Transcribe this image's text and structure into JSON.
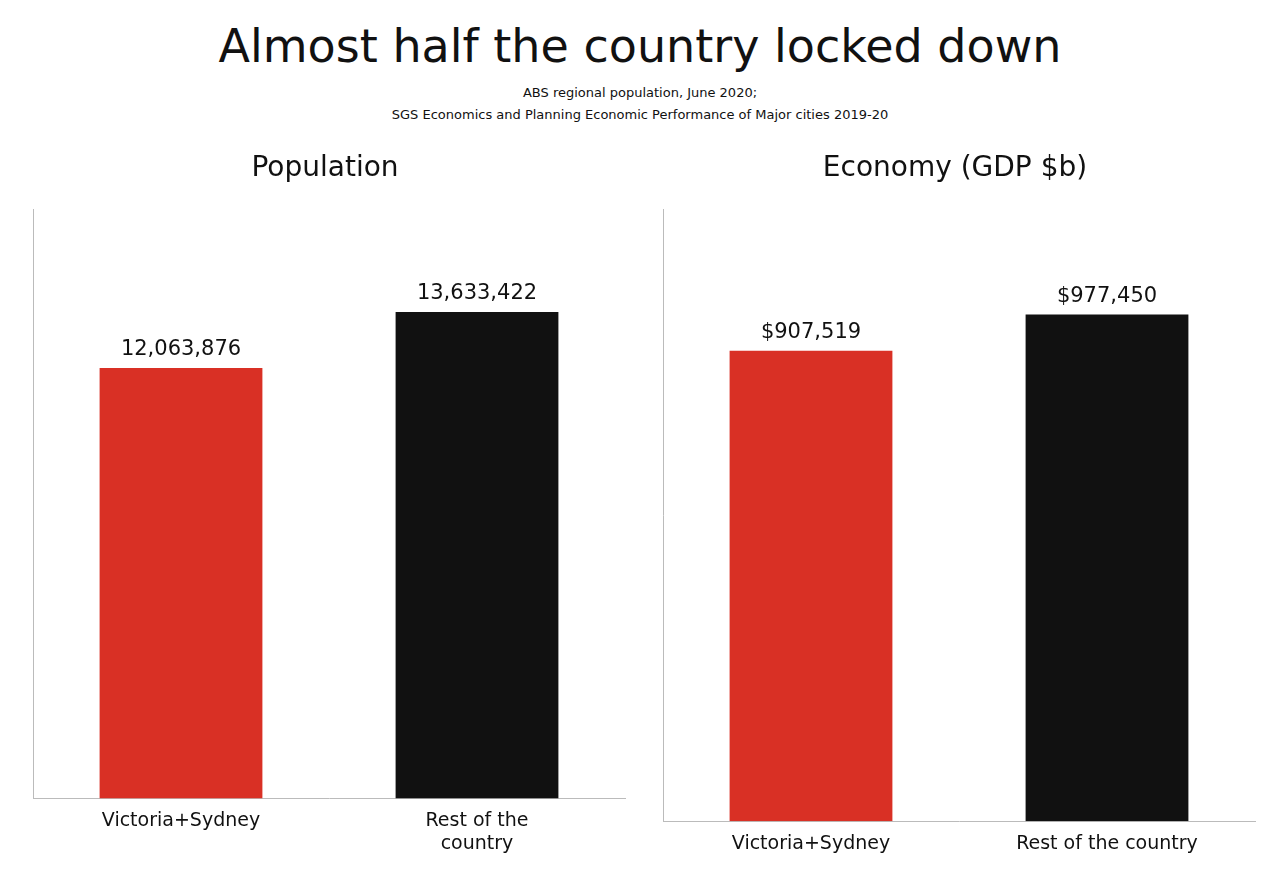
{
  "title": "Almost half the country locked down",
  "subtitle": "ABS regional population, June 2020;\nSGS Economics and Planning Economic Performance of Major cities 2019-20",
  "chart_data": [
    {
      "type": "bar",
      "title": "Population",
      "categories": [
        "Victoria+Sydney",
        "Rest of the\ncountry"
      ],
      "values": [
        12063876,
        13633422
      ],
      "value_labels": [
        "12,063,876",
        "13,633,422"
      ],
      "colors": [
        "#d93025",
        "#111111"
      ],
      "ylim": [
        0,
        16500000
      ],
      "grid": false,
      "data_labels": true,
      "tick_labels": "x"
    },
    {
      "type": "bar",
      "title": "Economy (GDP $b)",
      "categories": [
        "Victoria+Sydney",
        "Rest of the country"
      ],
      "values": [
        907519,
        977450
      ],
      "value_labels": [
        "$907,519",
        "$977,450"
      ],
      "colors": [
        "#d93025",
        "#111111"
      ],
      "ylim": [
        0,
        1180000
      ],
      "grid": false,
      "data_labels": true,
      "tick_labels": "x"
    }
  ]
}
